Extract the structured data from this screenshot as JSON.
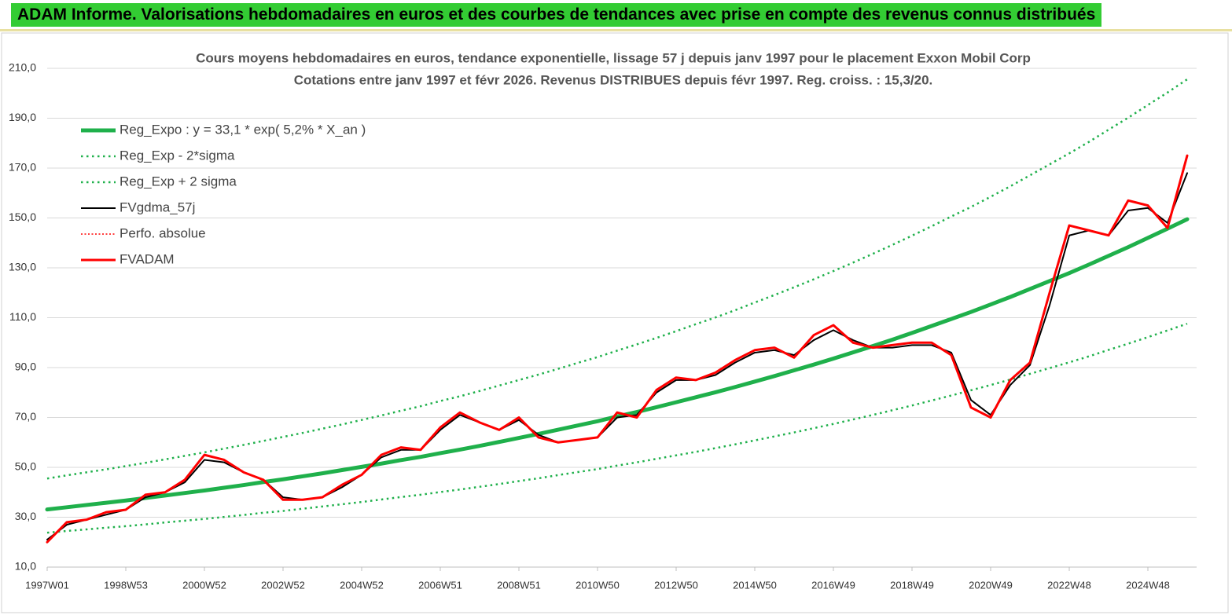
{
  "header": {
    "title": "ADAM Informe. Valorisations hebdomadaires en euros et des courbes de tendances avec prise en compte des revenus connus distribués"
  },
  "chart_data": {
    "type": "line",
    "title": "Cours moyens hebdomadaires en euros, tendance exponentielle, lissage 57 j depuis janv 1997 pour le placement Exxon Mobil Corp",
    "subtitle": "Cotations entre janv 1997 et févr 2026. Revenus DISTRIBUES depuis févr 1997. Reg. croiss. : 15,3/20.",
    "categories": [
      "1997W01",
      null,
      null,
      null,
      "1998W53",
      null,
      null,
      null,
      "2000W52",
      null,
      null,
      null,
      "2002W52",
      null,
      null,
      null,
      "2004W52",
      null,
      null,
      null,
      "2006W51",
      null,
      null,
      null,
      "2008W51",
      null,
      null,
      null,
      "2010W50",
      null,
      null,
      null,
      "2012W50",
      null,
      null,
      null,
      "2014W50",
      null,
      null,
      null,
      "2016W49",
      null,
      null,
      null,
      "2018W49",
      null,
      null,
      null,
      "2020W49",
      null,
      null,
      null,
      "2022W48",
      null,
      null,
      null,
      "2024W48",
      null,
      null
    ],
    "ylim": [
      10,
      210
    ],
    "yticks": [
      {
        "value": 10,
        "label": "10,0"
      },
      {
        "value": 30,
        "label": "30,0"
      },
      {
        "value": 50,
        "label": "50,0"
      },
      {
        "value": 70,
        "label": "70,0"
      },
      {
        "value": 90,
        "label": "90,0"
      },
      {
        "value": 110,
        "label": "110,0"
      },
      {
        "value": 130,
        "label": "130,0"
      },
      {
        "value": 150,
        "label": "150,0"
      },
      {
        "value": 170,
        "label": "170,0"
      },
      {
        "value": 190,
        "label": "190,0"
      },
      {
        "value": 210,
        "label": "210,0"
      }
    ],
    "grid": true,
    "series": [
      {
        "name": "Reg_Expo : y = 33,1 * exp( 5,2% *  X_an )",
        "color": "#1fb04b",
        "style": "solid",
        "width": 5,
        "values": [
          33.1,
          34.0,
          34.9,
          35.8,
          36.7,
          37.7,
          38.7,
          39.7,
          40.7,
          41.8,
          42.9,
          44.1,
          45.2,
          46.4,
          47.6,
          48.9,
          50.2,
          51.5,
          52.9,
          54.2,
          55.7,
          57.1,
          58.6,
          60.2,
          61.8,
          63.4,
          65.1,
          66.8,
          68.5,
          70.4,
          72.2,
          74.1,
          76.1,
          78.1,
          80.1,
          82.2,
          84.4,
          86.6,
          88.9,
          91.2,
          93.6,
          96.1,
          98.6,
          101.2,
          103.9,
          106.7,
          109.5,
          112.3,
          115.3,
          118.3,
          121.5,
          124.7,
          127.9,
          131.3,
          134.8,
          138.3,
          142.0,
          145.7,
          149.5
        ]
      },
      {
        "name": "Reg_Exp - 2*sigma",
        "color": "#1fb04b",
        "style": "dotted",
        "width": 2.5,
        "values": [
          23.8,
          24.5,
          25.1,
          25.8,
          26.4,
          27.1,
          27.9,
          28.6,
          29.3,
          30.1,
          30.9,
          31.8,
          32.5,
          33.4,
          34.3,
          35.2,
          36.1,
          37.1,
          38.1,
          39.0,
          40.1,
          41.1,
          42.2,
          43.3,
          44.5,
          45.6,
          46.9,
          48.1,
          49.3,
          50.7,
          52.0,
          53.4,
          54.8,
          56.2,
          57.7,
          59.2,
          60.8,
          62.4,
          64.0,
          65.7,
          67.4,
          69.2,
          71.0,
          72.9,
          74.8,
          76.8,
          78.8,
          80.9,
          83.0,
          85.2,
          87.5,
          89.8,
          92.1,
          94.5,
          97.1,
          99.6,
          102.2,
          104.9,
          107.6
        ]
      },
      {
        "name": "Reg_Exp + 2 sigma",
        "color": "#1fb04b",
        "style": "dotted",
        "width": 2.5,
        "values": [
          45.5,
          46.8,
          48.0,
          49.2,
          50.5,
          51.8,
          53.2,
          54.6,
          56.0,
          57.5,
          59.0,
          60.6,
          62.2,
          63.8,
          65.5,
          67.2,
          69.0,
          70.8,
          72.7,
          74.5,
          76.6,
          78.5,
          80.6,
          82.8,
          85.0,
          87.2,
          89.5,
          91.9,
          94.2,
          96.8,
          99.3,
          101.9,
          104.6,
          107.4,
          110.1,
          113.0,
          116.1,
          119.1,
          122.2,
          125.4,
          128.7,
          132.1,
          135.6,
          139.2,
          142.9,
          146.7,
          150.6,
          154.4,
          158.5,
          162.7,
          167.1,
          171.5,
          175.9,
          180.5,
          185.4,
          190.2,
          195.3,
          200.3,
          205.6
        ]
      },
      {
        "name": "FVgdma_57j",
        "color": "#000000",
        "style": "solid",
        "width": 2,
        "values": [
          21,
          27,
          29,
          31,
          33,
          38,
          40,
          44,
          53,
          52,
          48,
          45,
          38,
          37,
          38,
          42,
          47,
          54,
          57,
          57,
          65,
          71,
          68,
          65,
          69,
          63,
          60,
          61,
          62,
          70,
          71,
          80,
          85,
          85,
          87,
          92,
          96,
          97,
          95,
          101,
          105,
          101,
          98,
          98,
          99,
          99,
          96,
          77,
          71,
          83,
          91,
          115,
          143,
          145,
          143,
          153,
          154,
          148,
          168
        ]
      },
      {
        "name": "Perfo. absolue",
        "color": "#ff0000",
        "style": "dotted",
        "width": 1.5,
        "values": [
          null,
          null,
          null,
          null,
          null,
          null,
          null,
          null,
          null,
          null,
          null,
          null,
          null,
          null,
          null,
          null,
          null,
          null,
          null,
          null,
          null,
          null,
          null,
          null,
          null,
          null,
          null,
          null,
          null,
          null,
          null,
          null,
          null,
          null,
          null,
          null,
          null,
          null,
          null,
          null,
          null,
          null,
          null,
          null,
          null,
          null,
          null,
          null,
          null,
          null,
          null,
          null,
          null,
          null,
          null,
          null,
          null,
          null,
          null
        ]
      },
      {
        "name": "FVADAM",
        "color": "#ff0000",
        "style": "solid",
        "width": 3,
        "values": [
          20,
          28,
          29,
          32,
          33,
          39,
          40,
          45,
          55,
          53,
          48,
          45,
          37,
          37,
          38,
          43,
          47,
          55,
          58,
          57,
          66,
          72,
          68,
          65,
          70,
          62,
          60,
          61,
          62,
          72,
          70,
          81,
          86,
          85,
          88,
          93,
          97,
          98,
          94,
          103,
          107,
          100,
          98,
          99,
          100,
          100,
          95,
          74,
          70,
          85,
          92,
          120,
          147,
          145,
          143,
          157,
          155,
          146,
          175
        ]
      }
    ]
  }
}
